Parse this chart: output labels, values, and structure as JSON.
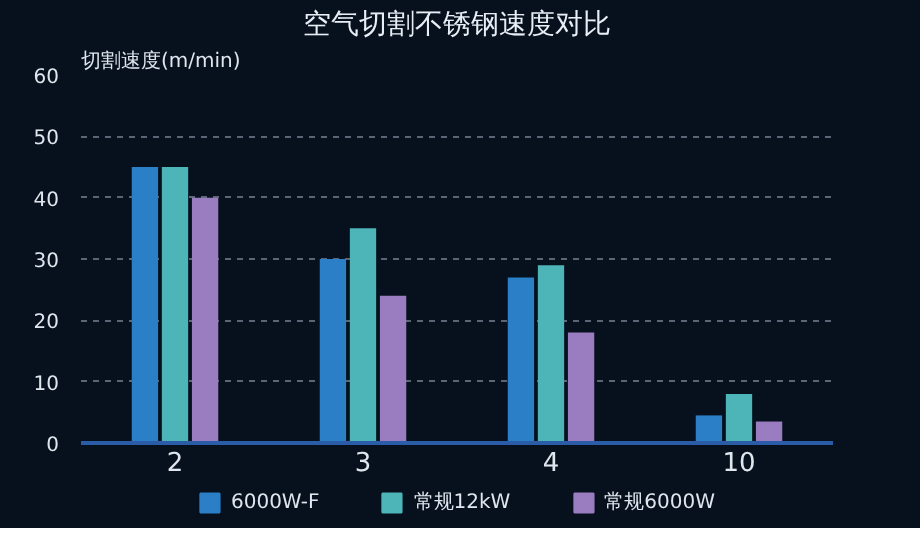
{
  "chart_data": {
    "type": "bar",
    "title": "空气切割不锈钢速度对比",
    "ylabel": "切割速度(m/min)",
    "categories": [
      "2",
      "3",
      "4",
      "10"
    ],
    "series": [
      {
        "name": "6000W-F",
        "color": "#2a7fc6",
        "values": [
          45,
          30,
          27,
          4.5
        ]
      },
      {
        "name": "常规12kW",
        "color": "#4db5b8",
        "values": [
          45,
          35,
          29,
          8
        ]
      },
      {
        "name": "常规6000W",
        "color": "#9a7cc0",
        "values": [
          40,
          24,
          18,
          3.5
        ]
      }
    ],
    "ylim": [
      0,
      60
    ],
    "yticks": [
      0,
      10,
      20,
      30,
      40,
      50,
      60
    ],
    "grid": "y",
    "legend": "bottom"
  }
}
